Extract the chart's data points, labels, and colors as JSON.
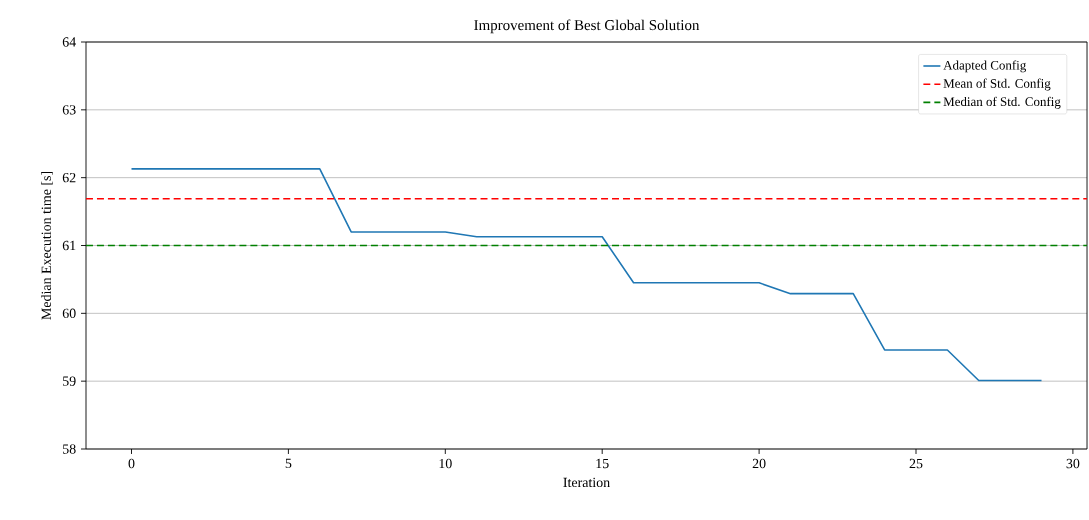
{
  "chart_data": {
    "type": "line",
    "title": "Improvement of Best Global Solution",
    "xlabel": "Iteration",
    "ylabel": "Median Execution time [s]",
    "x": [
      0,
      1,
      2,
      3,
      4,
      5,
      6,
      7,
      8,
      9,
      10,
      11,
      12,
      13,
      14,
      15,
      16,
      17,
      18,
      19,
      20,
      21,
      22,
      23,
      24,
      25,
      26,
      27,
      28,
      29
    ],
    "series": [
      {
        "name": "Adapted Config",
        "color": "#1f77b4",
        "values": [
          62.13,
          62.13,
          62.13,
          62.13,
          62.13,
          62.13,
          62.13,
          61.2,
          61.2,
          61.2,
          61.2,
          61.13,
          61.13,
          61.13,
          61.13,
          61.13,
          60.45,
          60.45,
          60.45,
          60.45,
          60.45,
          60.29,
          60.29,
          60.29,
          59.46,
          59.46,
          59.46,
          59.01,
          59.01,
          59.01
        ]
      }
    ],
    "ref_lines": [
      {
        "axis": "y",
        "value": 61.69,
        "label": "Mean of Std. Config",
        "color": "#ff0000",
        "line_style": "dashed"
      },
      {
        "axis": "y",
        "value": 61.0,
        "label": "Median of Std. Config",
        "color": "#008000",
        "line_style": "dashed"
      }
    ],
    "xlim": [
      -1.45,
      30.45
    ],
    "ylim": [
      58,
      64
    ],
    "xticks": [
      0,
      5,
      10,
      15,
      20,
      25,
      30
    ],
    "yticks": [
      58,
      59,
      60,
      61,
      62,
      63,
      64
    ],
    "grid": "y",
    "legend": "top right",
    "marker": "none",
    "line_style": "solid"
  }
}
